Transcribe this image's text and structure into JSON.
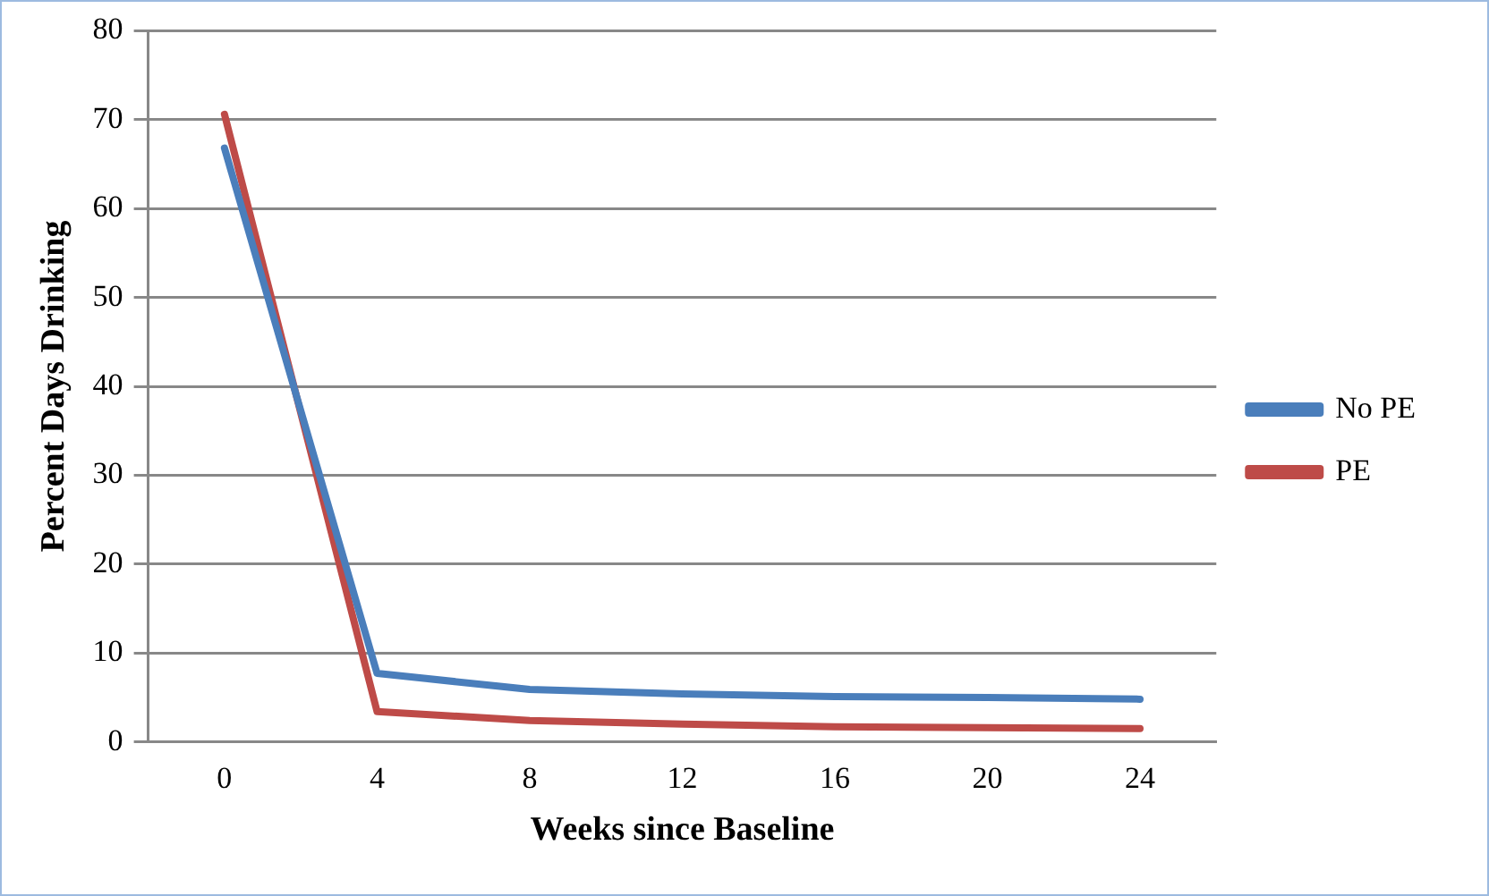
{
  "chart_data": {
    "type": "line",
    "xlabel": "Weeks since Baseline",
    "ylabel": "Percent Days Drinking",
    "categories": [
      "0",
      "4",
      "8",
      "12",
      "16",
      "20",
      "24"
    ],
    "series": [
      {
        "name": "No PE",
        "color": "#4a7ebb",
        "values": [
          66.8,
          7.7,
          5.9,
          5.4,
          5.1,
          5.0,
          4.8
        ]
      },
      {
        "name": "PE",
        "color": "#be4b48",
        "values": [
          70.6,
          3.4,
          2.4,
          2.0,
          1.7,
          1.6,
          1.5
        ]
      }
    ],
    "ylim": [
      0,
      80
    ],
    "yticks": [
      0,
      10,
      20,
      30,
      40,
      50,
      60,
      70,
      80
    ],
    "grid": "y",
    "legend": "right",
    "marker": "none",
    "line_style": "solid"
  }
}
